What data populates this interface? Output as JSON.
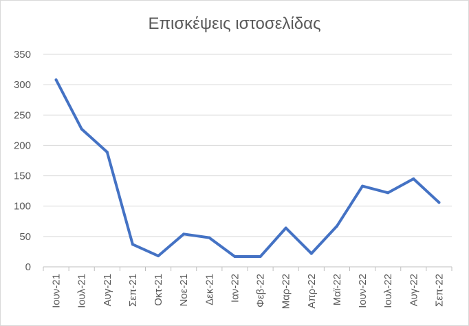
{
  "chart_data": {
    "type": "line",
    "title": "Επισκέψεις ιστοσελίδας",
    "xlabel": "",
    "ylabel": "",
    "categories": [
      "Ιουν-21",
      "Ιουλ-21",
      "Αυγ-21",
      "Σεπ-21",
      "Οκτ-21",
      "Νοε-21",
      "Δεκ-21",
      "Ιαν-22",
      "Φεβ-22",
      "Μαρ-22",
      "Απρ-22",
      "Μαϊ-22",
      "Ιουν-22",
      "Ιουλ-22",
      "Αυγ-22",
      "Σεπ-22"
    ],
    "series": [
      {
        "values": [
          308,
          227,
          189,
          37,
          18,
          54,
          48,
          17,
          17,
          64,
          22,
          67,
          133,
          122,
          145,
          106
        ]
      }
    ],
    "ylim": [
      0,
      350
    ],
    "yticks": [
      0,
      50,
      100,
      150,
      200,
      250,
      300,
      350
    ],
    "grid": true,
    "legend": "none",
    "colors": {
      "series": "#4472c4",
      "grid": "#d9d9d9",
      "text": "#595959"
    }
  }
}
